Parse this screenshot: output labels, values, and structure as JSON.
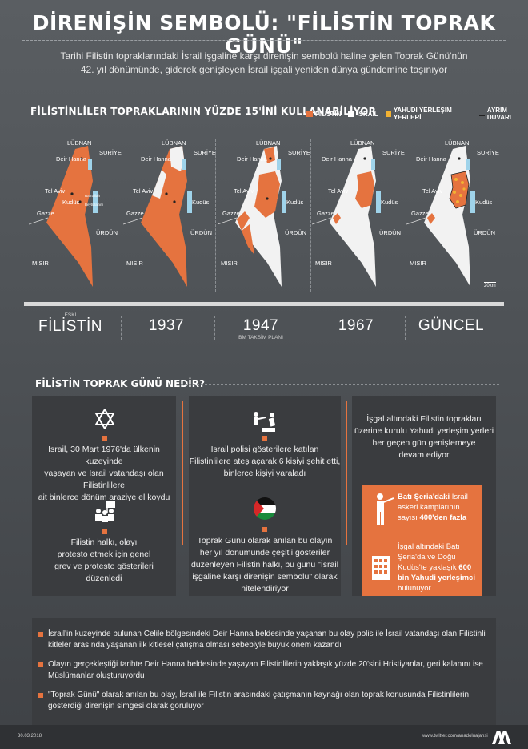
{
  "header": {
    "title": "DİRENİŞİN SEMBOLÜ: \"FİLİSTİN TOPRAK GÜNÜ\"",
    "subtitle_line1": "Tarihi Filistin topraklarındaki İsrail işgaline karşı direnişin sembolü haline gelen Toprak Günü'nün",
    "subtitle_line2": "42. yıl dönümünde, giderek genişleyen İsrail işgali yeniden dünya gündemine taşınıyor"
  },
  "maps_section": {
    "heading": "FİLİSTİNLİLER TOPRAKLARININ YÜZDE 15'İNİ KULLANABİLİYOR",
    "legend": [
      {
        "label": "FİLİSTİN",
        "color": "#e5733f"
      },
      {
        "label": "İSRAİL",
        "color": "#ffffff"
      },
      {
        "label": "YAHUDİ YERLEŞİM YERLERİ",
        "color": "#f2b233"
      },
      {
        "label": "AYRIM DUVARI",
        "color": "#222222"
      }
    ],
    "place_labels": {
      "lubnan": "LÜBNAN",
      "suriye": "SURİYE",
      "deir_hanna": "Deir Hanna",
      "tel_aviv": "Tel Aviv",
      "kudus": "Kudüs",
      "gazze": "Gazze",
      "urdun": "ÜRDÜN",
      "misir": "MISIR",
      "ramallah": "Ramallah",
      "beytullahim": "Beytüllahim"
    },
    "scale_label": "20km",
    "periods": [
      {
        "top": "ESKİ",
        "label": "FİLİSTİN",
        "note": ""
      },
      {
        "top": "",
        "label": "1937",
        "note": ""
      },
      {
        "top": "",
        "label": "1947",
        "note": "BM TAKSİM PLANI"
      },
      {
        "top": "",
        "label": "1967",
        "note": ""
      },
      {
        "top": "",
        "label": "GÜNCEL",
        "note": ""
      }
    ]
  },
  "what_section": {
    "heading": "FİLİSTİN TOPRAK GÜNÜ NEDİR?",
    "card1_text": [
      "İsrail, 30 Mart 1976'da ülkenin kuzeyinde",
      "yaşayan ve İsrail vatandaşı olan Filistinlilere",
      "ait binlerce dönüm araziye el koydu"
    ],
    "card2_text": [
      "İsrail polisi gösterilere katılan",
      "Filistinlilere ateş açarak 6 kişiyi şehit etti,",
      "binlerce kişiyi yaraladı"
    ],
    "card3_text": [
      "İşgal altındaki Filistin toprakları",
      "üzerine kurulu Yahudi yerleşim yerleri",
      "her geçen gün genişlemeye",
      "devam ediyor"
    ],
    "card4_text": [
      "Filistin halkı, olayı",
      "protesto etmek için genel",
      "grev ve protesto gösterileri",
      "düzenledi"
    ],
    "card5_text": [
      "Toprak Günü olarak anılan bu olayın",
      "her yıl dönümünde çeşitli gösteriler",
      "düzenleyen Filistin halkı, bu günü \"İsrail",
      "işgaline karşı direnişin sembolü\" olarak",
      "nitelendiriyor"
    ],
    "stat1": {
      "bold1": "Batı Şeria'daki",
      "text": " İsrail askeri kamplarının sayısı ",
      "bold2": "400'den fazla"
    },
    "stat2": {
      "text1": "İşgal altındaki Batı Şeria'da ve Doğu Kudüs'te yaklaşık ",
      "bold": "600 bin Yahudi yerleşimci",
      "text2": " bulunuyor"
    }
  },
  "notes": [
    "İsrail'in kuzeyinde bulunan Celile bölgesindeki Deir Hanna beldesinde yaşanan bu olay polis ile İsrail vatandaşı olan Filistinli kitleler arasında yaşanan ilk kitlesel çatışma olması sebebiyle büyük önem kazandı",
    "Olayın gerçekleştiği tarihte Deir Hanna beldesinde yaşayan Filistinlilerin yaklaşık yüzde 20'sini Hristiyanlar, geri kalanını ise Müslümanlar oluşturuyordu",
    "\"Toprak Günü\" olarak anılan bu olay, İsrail ile Filistin arasındaki çatışmanın kaynağı olan toprak konusunda Filistinlilerin gösterdiği direnişin simgesi olarak görülüyor"
  ],
  "footer": {
    "date": "30.03.2018",
    "twitter": "www.twitter.com/anadoluajansi",
    "logo": "AA"
  },
  "colors": {
    "accent": "#e5733f",
    "panel": "#3a3c3f",
    "israel": "#f2f2f2",
    "water": "#9fd3ea",
    "settlement": "#f2b233"
  }
}
